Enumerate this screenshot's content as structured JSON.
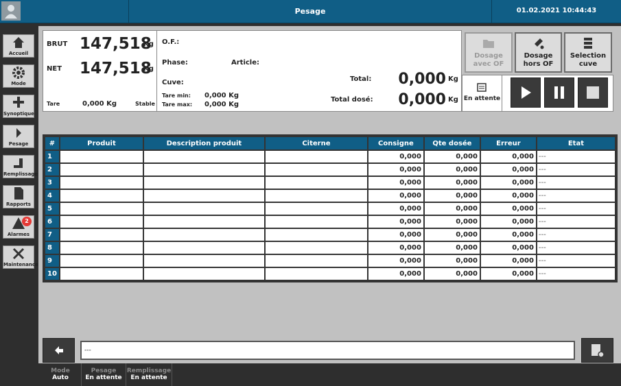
{
  "header": {
    "title": "Pesage",
    "datetime": "01.02.2021 10:44:43"
  },
  "sidebar": {
    "items": [
      {
        "label": "Accueil"
      },
      {
        "label": "Mode"
      },
      {
        "label": "Synoptique"
      },
      {
        "label": "Pesage"
      },
      {
        "label": "Remplissage"
      },
      {
        "label": "Rapports"
      },
      {
        "label": "Alarmes",
        "badge": "2"
      },
      {
        "label": "Maintenance"
      }
    ]
  },
  "weights": {
    "brut_label": "BRUT",
    "brut_value": "147,518",
    "brut_unit": "Kg",
    "net_label": "NET",
    "net_value": "147,518",
    "net_unit": "Kg",
    "tare_label": "Tare",
    "tare_value": "0,000 Kg",
    "status": "Stable"
  },
  "order": {
    "of_label": "O.F.:",
    "phase_label": "Phase:",
    "article_label": "Article:",
    "cuve_label": "Cuve:",
    "tare_min_label": "Tare min:",
    "tare_min_value": "0,000 Kg",
    "tare_max_label": "Tare max:",
    "tare_max_value": "0,000 Kg",
    "total_label": "Total:",
    "total_value": "0,000",
    "total_unit": "Kg",
    "total_dose_label": "Total dosé:",
    "total_dose_value": "0,000",
    "total_dose_unit": "Kg"
  },
  "actions": {
    "dosage_avec_of": [
      "Dosage",
      "avec OF"
    ],
    "dosage_hors_of": [
      "Dosage",
      "hors OF"
    ],
    "selection_cuve": [
      "Selection",
      "cuve"
    ],
    "status": "En attente"
  },
  "table": {
    "columns": [
      "#",
      "Produit",
      "Description produit",
      "Citerne",
      "Consigne",
      "Qte dosée",
      "Erreur",
      "Etat"
    ],
    "rows": [
      {
        "index": "1",
        "consigne": "0,000",
        "qte_dosee": "0,000",
        "erreur": "0,000",
        "etat": "---"
      },
      {
        "index": "2",
        "consigne": "0,000",
        "qte_dosee": "0,000",
        "erreur": "0,000",
        "etat": "---"
      },
      {
        "index": "3",
        "consigne": "0,000",
        "qte_dosee": "0,000",
        "erreur": "0,000",
        "etat": "---"
      },
      {
        "index": "4",
        "consigne": "0,000",
        "qte_dosee": "0,000",
        "erreur": "0,000",
        "etat": "---"
      },
      {
        "index": "5",
        "consigne": "0,000",
        "qte_dosee": "0,000",
        "erreur": "0,000",
        "etat": "---"
      },
      {
        "index": "6",
        "consigne": "0,000",
        "qte_dosee": "0,000",
        "erreur": "0,000",
        "etat": "---"
      },
      {
        "index": "7",
        "consigne": "0,000",
        "qte_dosee": "0,000",
        "erreur": "0,000",
        "etat": "---"
      },
      {
        "index": "8",
        "consigne": "0,000",
        "qte_dosee": "0,000",
        "erreur": "0,000",
        "etat": "---"
      },
      {
        "index": "9",
        "consigne": "0,000",
        "qte_dosee": "0,000",
        "erreur": "0,000",
        "etat": "---"
      },
      {
        "index": "10",
        "consigne": "0,000",
        "qte_dosee": "0,000",
        "erreur": "0,000",
        "etat": "---"
      }
    ]
  },
  "footer": {
    "message": "---",
    "status": [
      {
        "label": "Mode",
        "value": "Auto"
      },
      {
        "label": "Pesage",
        "value": "En attente"
      },
      {
        "label": "Remplissage",
        "value": "En attente"
      }
    ]
  }
}
